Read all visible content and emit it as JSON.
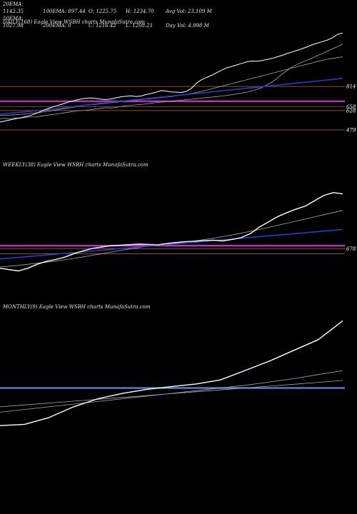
{
  "stats": {
    "row1": [
      "20EMA: 1142.35",
      "100EMA: 897.44",
      "O: 1225.75",
      "H: 1234.70",
      "Avg Vol: 23.109 M"
    ],
    "row2": [
      "50EMA: 1027.98",
      "200EMA: 0",
      "C: 1216.42",
      "L: 1208.21",
      "Day Vol: 4.998 M"
    ]
  },
  "colors": {
    "price": "#ffffff",
    "ema_blue": "#1f3fd6",
    "ema_gray": "#a8a8a8",
    "magenta": "#d62fd6",
    "orange": "#c8661e",
    "steel": "#5b8ae6"
  },
  "chart_data": [
    {
      "type": "line",
      "panel": "daily",
      "title": "DAILY(168) Eagle   View  WSBH charts MunafaSutra.com",
      "y_label_values": [
        "814",
        "658",
        "628",
        "479"
      ],
      "horizontal_levels": [
        {
          "value": 814,
          "label": "814",
          "color": "#c8661e"
        },
        {
          "value": 700,
          "label": "",
          "color": "#d62fd6"
        },
        {
          "value": 658,
          "label": "658",
          "color": "#c8661e"
        },
        {
          "value": 628,
          "label": "628",
          "color": "#c8661e"
        },
        {
          "value": 479,
          "label": "479",
          "color": "#c8661e"
        }
      ],
      "ylim": [
        380,
        1260
      ],
      "series": [
        {
          "values": [
            565,
            568,
            564,
            572,
            570,
            575,
            580,
            578,
            585,
            590,
            596,
            600,
            606,
            612,
            618,
            624,
            628,
            630,
            635,
            640,
            645,
            650,
            648,
            652,
            660,
            665,
            668,
            672,
            675,
            680,
            684,
            690,
            693,
            697,
            700,
            705,
            708,
            712,
            715,
            720,
            724,
            728,
            732,
            736,
            740,
            745,
            750,
            756,
            762,
            770,
            780,
            792,
            806,
            826,
            850,
            876,
            910,
            938,
            964,
            984,
            1002,
            1018,
            1034,
            1052,
            1068,
            1086,
            1104,
            1122,
            1140
          ]
        },
        {
          "values": [
            590,
            592,
            594,
            596,
            598,
            602,
            606,
            610,
            614,
            620,
            626,
            632,
            638,
            644,
            650,
            656,
            662,
            668,
            672,
            676,
            680,
            684,
            688,
            692,
            696,
            700,
            704,
            708,
            712,
            716,
            720,
            724,
            728,
            732,
            736,
            742,
            748,
            754,
            760,
            768,
            776,
            786,
            796,
            806,
            816,
            826,
            836,
            846,
            856,
            866,
            876,
            886,
            896,
            906,
            916,
            926,
            936,
            946,
            956,
            966,
            976,
            986,
            996,
            1006,
            1016,
            1024,
            1030,
            1036,
            1042
          ]
        },
        {
          "values": [
            600,
            604,
            608,
            612,
            615,
            618,
            622,
            626,
            630,
            634,
            638,
            642,
            646,
            650,
            655,
            660,
            665,
            670,
            675,
            680,
            684,
            688,
            692,
            696,
            700,
            704,
            708,
            712,
            716,
            720,
            724,
            728,
            732,
            736,
            740,
            744,
            748,
            752,
            756,
            760,
            764,
            768,
            772,
            776,
            780,
            784,
            788,
            792,
            796,
            800,
            804,
            808,
            812,
            816,
            820,
            824,
            828,
            832,
            836,
            840,
            844,
            848,
            852,
            856,
            860,
            864,
            868,
            872,
            876
          ]
        },
        {
          "values": [
            540,
            548,
            556,
            564,
            572,
            580,
            590,
            604,
            620,
            636,
            650,
            662,
            674,
            686,
            698,
            708,
            716,
            722,
            726,
            722,
            716,
            712,
            718,
            726,
            734,
            738,
            742,
            736,
            740,
            752,
            760,
            770,
            782,
            778,
            772,
            770,
            768,
            776,
            800,
            840,
            866,
            884,
            900,
            920,
            940,
            958,
            968,
            980,
            992,
            1004,
            1010,
            1008,
            1014,
            1022,
            1030,
            1042,
            1054,
            1068,
            1080,
            1092,
            1106,
            1120,
            1136,
            1148,
            1160,
            1172,
            1190,
            1216,
            1226
          ]
        }
      ]
    },
    {
      "type": "line",
      "panel": "weekly",
      "title": "WEEKLY(38) Eagle   View  WSBH charts MunafaSutra.com",
      "y_label_values": [
        "678"
      ],
      "horizontal_levels": [
        {
          "value": 700,
          "label": "",
          "color": "#d62fd6"
        },
        {
          "value": 678,
          "label": "678",
          "color": "#c8661e"
        },
        {
          "value": 640,
          "label": "",
          "color": "#c8661e"
        }
      ],
      "ylim": [
        400,
        1260
      ],
      "series": [
        {
          "values": [
            540,
            546,
            552,
            560,
            568,
            576,
            584,
            594,
            604,
            616,
            628,
            640,
            652,
            664,
            676,
            686,
            696,
            704,
            712,
            720,
            728,
            736,
            746,
            756,
            768,
            780,
            794,
            808,
            822,
            838,
            854,
            870,
            886,
            902,
            918,
            934,
            950,
            966
          ]
        },
        {
          "values": [
            600,
            606,
            612,
            618,
            624,
            630,
            636,
            642,
            648,
            654,
            660,
            666,
            672,
            678,
            684,
            690,
            696,
            702,
            708,
            714,
            720,
            726,
            732,
            738,
            744,
            750,
            756,
            762,
            768,
            774,
            780,
            786,
            792,
            798,
            804,
            810,
            816,
            822
          ]
        },
        {
          "values": [
            530,
            520,
            510,
            530,
            560,
            582,
            596,
            614,
            640,
            662,
            680,
            690,
            700,
            704,
            708,
            712,
            710,
            706,
            716,
            724,
            730,
            734,
            738,
            742,
            736,
            746,
            760,
            790,
            840,
            880,
            920,
            950,
            976,
            1000,
            1040,
            1080,
            1100,
            1090
          ]
        }
      ]
    },
    {
      "type": "line",
      "panel": "monthly",
      "title": "MONTHLY(9) Eagle   View  WSBH charts MunafaSutra.com",
      "y_label_values": [],
      "horizontal_levels": [
        {
          "value": 700,
          "label": "",
          "color": "#5b8ae6"
        }
      ],
      "ylim": [
        400,
        1250
      ],
      "series": [
        {
          "values": [
            520,
            540,
            560,
            580,
            600,
            620,
            640,
            660,
            680,
            700,
            720,
            745,
            770,
            800,
            830
          ]
        },
        {
          "values": [
            560,
            574,
            588,
            602,
            616,
            630,
            644,
            658,
            672,
            686,
            700,
            714,
            728,
            742,
            756
          ]
        },
        {
          "values": [
            420,
            430,
            480,
            560,
            620,
            660,
            690,
            710,
            730,
            760,
            830,
            900,
            980,
            1060,
            1200
          ]
        }
      ]
    }
  ]
}
